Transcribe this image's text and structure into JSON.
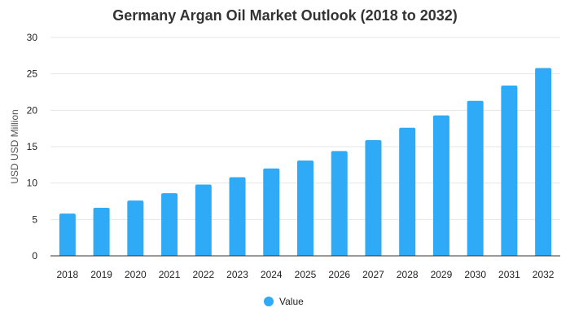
{
  "chart_data": {
    "type": "bar",
    "title": "Germany Argan Oil Market Outlook (2018 to 2032)",
    "xlabel": "",
    "ylabel": "USD USD Million",
    "categories": [
      "2018",
      "2019",
      "2020",
      "2021",
      "2022",
      "2023",
      "2024",
      "2025",
      "2026",
      "2027",
      "2028",
      "2029",
      "2030",
      "2031",
      "2032"
    ],
    "series": [
      {
        "name": "Value",
        "values": [
          5.8,
          6.6,
          7.6,
          8.6,
          9.8,
          10.8,
          12.0,
          13.1,
          14.4,
          15.9,
          17.6,
          19.3,
          21.3,
          23.4,
          25.8
        ]
      }
    ],
    "ylim": [
      0,
      30
    ],
    "yticks": [
      0,
      5,
      10,
      15,
      20,
      25,
      30
    ],
    "grid": true,
    "legend_position": "bottom-center",
    "colors": {
      "bar": "#2eaaf6"
    }
  }
}
